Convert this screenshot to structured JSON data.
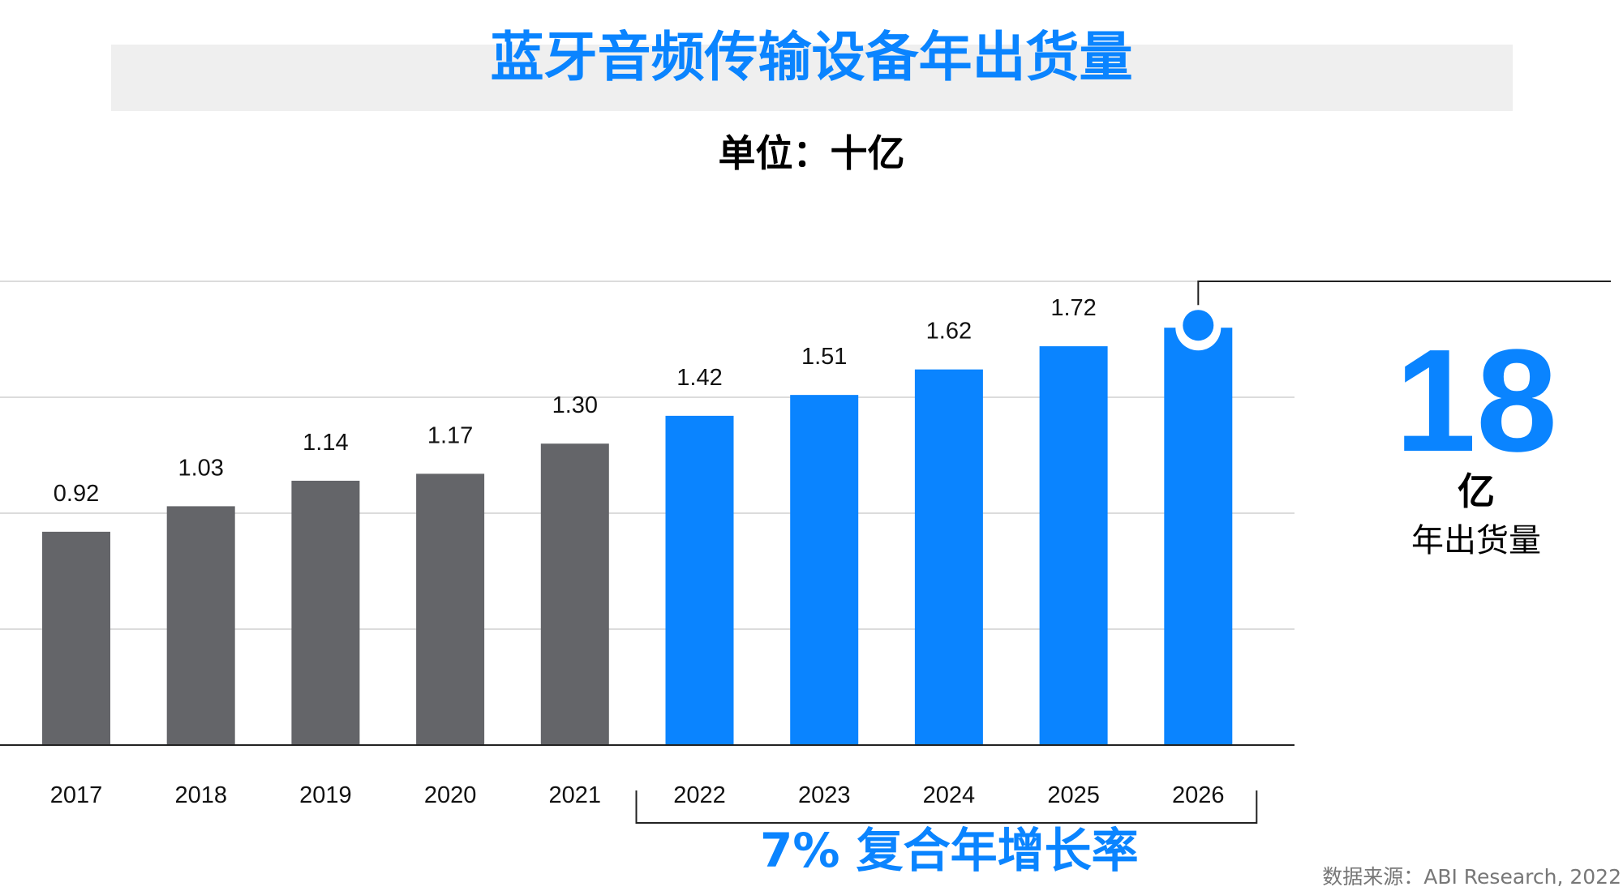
{
  "chart_data": {
    "type": "bar",
    "title": "蓝牙音频传输设备年出货量",
    "subtitle": "单位：十亿",
    "categories": [
      "2017",
      "2018",
      "2019",
      "2020",
      "2021",
      "2022",
      "2023",
      "2024",
      "2025",
      "2026"
    ],
    "values": [
      0.92,
      1.03,
      1.14,
      1.17,
      1.3,
      1.42,
      1.51,
      1.62,
      1.72,
      1.8
    ],
    "value_labels": [
      "0.92",
      "1.03",
      "1.14",
      "1.17",
      "1.30",
      "1.42",
      "1.51",
      "1.62",
      "1.72",
      ""
    ],
    "ylim": [
      0,
      2
    ],
    "grid": true,
    "colors": {
      "historical": "#646569",
      "forecast": "#0a84ff"
    },
    "forecast_start": "2022",
    "cagr_annotation": "7% 复合年增长率",
    "callout": {
      "number": "18",
      "unit": "亿",
      "caption": "年出货量"
    },
    "source": "数据来源：ABI Research, 2022"
  }
}
